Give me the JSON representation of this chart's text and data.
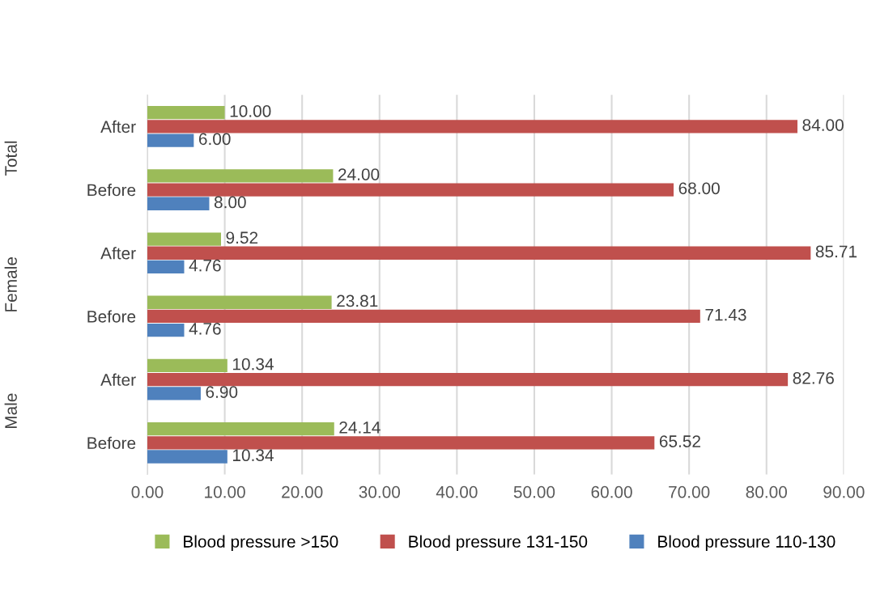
{
  "chart_data": {
    "type": "bar",
    "orientation": "horizontal",
    "categories": [
      "After",
      "Before",
      "After",
      "Before",
      "After",
      "Before"
    ],
    "series": [
      {
        "name": "Blood pressure >150",
        "color": "#9bbb59",
        "values": [
          10.0,
          24.0,
          9.52,
          23.81,
          10.34,
          24.14
        ],
        "value_labels": [
          "10.00",
          "24.00",
          "9.52",
          "23.81",
          "10.34",
          "24.14"
        ]
      },
      {
        "name": "Blood pressure 131-150",
        "color": "#c0504d",
        "values": [
          84.0,
          68.0,
          85.71,
          71.43,
          82.76,
          65.52
        ],
        "value_labels": [
          "84.00",
          "68.00",
          "85.71",
          "71.43",
          "82.76",
          "65.52"
        ]
      },
      {
        "name": "Blood pressure 110-130",
        "color": "#4f81bd",
        "values": [
          6.0,
          8.0,
          4.76,
          4.76,
          6.9,
          10.34
        ],
        "value_labels": [
          "6.00",
          "8.00",
          "4.76",
          "4.76",
          "6.90",
          "10.34"
        ]
      }
    ],
    "annotations": [
      "Total",
      "Female",
      "Male"
    ],
    "xlim": [
      0,
      90
    ],
    "xticks": [
      {
        "value": 0,
        "label": "0.00"
      },
      {
        "value": 10,
        "label": "10.00"
      },
      {
        "value": 20,
        "label": "20.00"
      },
      {
        "value": 30,
        "label": "30.00"
      },
      {
        "value": 40,
        "label": "40.00"
      },
      {
        "value": 50,
        "label": "50.00"
      },
      {
        "value": 60,
        "label": "60.00"
      },
      {
        "value": 70,
        "label": "70.00"
      },
      {
        "value": 80,
        "label": "80.00"
      },
      {
        "value": 90,
        "label": "90.00"
      }
    ],
    "grid": "x",
    "legend": "bottom"
  }
}
